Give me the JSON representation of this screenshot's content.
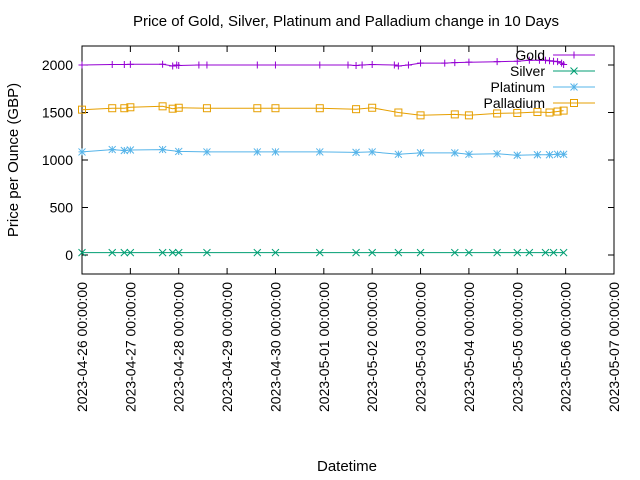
{
  "chart_data": {
    "type": "line",
    "title": "Price of Gold, Silver, Platinum and Palladium change in 10 Days",
    "xlabel": "Datetime",
    "ylabel": "Price per Ounce (GBP)",
    "x_ticks": [
      "2023-04-26 00:00:00",
      "2023-04-27 00:00:00",
      "2023-04-28 00:00:00",
      "2023-04-29 00:00:00",
      "2023-04-30 00:00:00",
      "2023-05-01 00:00:00",
      "2023-05-02 00:00:00",
      "2023-05-03 00:00:00",
      "2023-05-04 00:00:00",
      "2023-05-05 00:00:00",
      "2023-05-06 00:00:00",
      "2023-05-07 00:00:00"
    ],
    "xlim": [
      "2023-04-26 00:00",
      "2023-05-07 00:00"
    ],
    "y_ticks": [
      0,
      500,
      1000,
      1500,
      2000
    ],
    "ylim": [
      -200,
      2200
    ],
    "grid": false,
    "legend_position": "top-right",
    "series": [
      {
        "name": "Gold",
        "color": "#9400d3",
        "marker": "plus",
        "points": [
          [
            "2023-04-26 00:00",
            2000
          ],
          [
            "2023-04-26 15:00",
            2005
          ],
          [
            "2023-04-26 21:00",
            2005
          ],
          [
            "2023-04-27 00:00",
            2007
          ],
          [
            "2023-04-27 16:00",
            2008
          ],
          [
            "2023-04-27 21:00",
            1990
          ],
          [
            "2023-04-27 23:00",
            2000
          ],
          [
            "2023-04-28 00:00",
            1995
          ],
          [
            "2023-04-28 10:00",
            2000
          ],
          [
            "2023-04-28 14:00",
            2000
          ],
          [
            "2023-04-29 15:00",
            2000
          ],
          [
            "2023-04-30 00:00",
            2000
          ],
          [
            "2023-04-30 22:00",
            2000
          ],
          [
            "2023-05-01 12:00",
            2000
          ],
          [
            "2023-05-01 16:00",
            1995
          ],
          [
            "2023-05-01 19:00",
            2000
          ],
          [
            "2023-05-02 00:00",
            2005
          ],
          [
            "2023-05-02 11:00",
            2000
          ],
          [
            "2023-05-02 13:00",
            1990
          ],
          [
            "2023-05-02 18:00",
            2000
          ],
          [
            "2023-05-03 00:00",
            2020
          ],
          [
            "2023-05-03 12:00",
            2020
          ],
          [
            "2023-05-03 17:00",
            2025
          ],
          [
            "2023-05-04 00:00",
            2030
          ],
          [
            "2023-05-04 14:00",
            2035
          ],
          [
            "2023-05-05 00:00",
            2040
          ],
          [
            "2023-05-05 06:00",
            2050
          ],
          [
            "2023-05-05 11:00",
            2050
          ],
          [
            "2023-05-05 14:00",
            2050
          ],
          [
            "2023-05-05 16:00",
            2045
          ],
          [
            "2023-05-05 18:00",
            2040
          ],
          [
            "2023-05-05 20:00",
            2035
          ],
          [
            "2023-05-05 22:00",
            2020
          ],
          [
            "2023-05-05 23:00",
            2005
          ]
        ]
      },
      {
        "name": "Silver",
        "color": "#009e73",
        "marker": "cross",
        "points": [
          [
            "2023-04-26 00:00",
            25
          ],
          [
            "2023-04-26 15:00",
            25
          ],
          [
            "2023-04-26 21:00",
            25
          ],
          [
            "2023-04-27 00:00",
            25
          ],
          [
            "2023-04-27 16:00",
            25
          ],
          [
            "2023-04-27 21:00",
            25
          ],
          [
            "2023-04-28 00:00",
            25
          ],
          [
            "2023-04-28 14:00",
            25
          ],
          [
            "2023-04-29 15:00",
            25
          ],
          [
            "2023-04-30 00:00",
            25
          ],
          [
            "2023-04-30 22:00",
            25
          ],
          [
            "2023-05-01 16:00",
            25
          ],
          [
            "2023-05-02 00:00",
            25
          ],
          [
            "2023-05-02 13:00",
            25
          ],
          [
            "2023-05-03 00:00",
            25
          ],
          [
            "2023-05-03 17:00",
            25
          ],
          [
            "2023-05-04 00:00",
            25
          ],
          [
            "2023-05-04 14:00",
            25
          ],
          [
            "2023-05-05 00:00",
            25
          ],
          [
            "2023-05-05 06:00",
            25
          ],
          [
            "2023-05-05 14:00",
            25
          ],
          [
            "2023-05-05 18:00",
            25
          ],
          [
            "2023-05-05 23:00",
            25
          ]
        ]
      },
      {
        "name": "Platinum",
        "color": "#56b4e9",
        "marker": "star",
        "points": [
          [
            "2023-04-26 00:00",
            1085
          ],
          [
            "2023-04-26 15:00",
            1110
          ],
          [
            "2023-04-26 21:00",
            1100
          ],
          [
            "2023-04-27 00:00",
            1105
          ],
          [
            "2023-04-27 16:00",
            1110
          ],
          [
            "2023-04-28 00:00",
            1090
          ],
          [
            "2023-04-28 14:00",
            1085
          ],
          [
            "2023-04-29 15:00",
            1085
          ],
          [
            "2023-04-30 00:00",
            1085
          ],
          [
            "2023-04-30 22:00",
            1085
          ],
          [
            "2023-05-01 16:00",
            1080
          ],
          [
            "2023-05-02 00:00",
            1085
          ],
          [
            "2023-05-02 13:00",
            1060
          ],
          [
            "2023-05-03 00:00",
            1075
          ],
          [
            "2023-05-03 17:00",
            1075
          ],
          [
            "2023-05-04 00:00",
            1060
          ],
          [
            "2023-05-04 14:00",
            1065
          ],
          [
            "2023-05-05 00:00",
            1050
          ],
          [
            "2023-05-05 10:00",
            1055
          ],
          [
            "2023-05-05 16:00",
            1055
          ],
          [
            "2023-05-05 20:00",
            1060
          ],
          [
            "2023-05-05 23:00",
            1060
          ]
        ]
      },
      {
        "name": "Palladium",
        "color": "#e69f00",
        "marker": "square",
        "points": [
          [
            "2023-04-26 00:00",
            1530
          ],
          [
            "2023-04-26 15:00",
            1545
          ],
          [
            "2023-04-26 21:00",
            1545
          ],
          [
            "2023-04-27 00:00",
            1555
          ],
          [
            "2023-04-27 16:00",
            1565
          ],
          [
            "2023-04-27 21:00",
            1540
          ],
          [
            "2023-04-28 00:00",
            1550
          ],
          [
            "2023-04-28 14:00",
            1545
          ],
          [
            "2023-04-29 15:00",
            1545
          ],
          [
            "2023-04-30 00:00",
            1545
          ],
          [
            "2023-04-30 22:00",
            1545
          ],
          [
            "2023-05-01 16:00",
            1535
          ],
          [
            "2023-05-02 00:00",
            1550
          ],
          [
            "2023-05-02 13:00",
            1500
          ],
          [
            "2023-05-03 00:00",
            1470
          ],
          [
            "2023-05-03 17:00",
            1480
          ],
          [
            "2023-05-04 00:00",
            1470
          ],
          [
            "2023-05-04 14:00",
            1490
          ],
          [
            "2023-05-05 00:00",
            1495
          ],
          [
            "2023-05-05 10:00",
            1505
          ],
          [
            "2023-05-05 16:00",
            1500
          ],
          [
            "2023-05-05 20:00",
            1510
          ],
          [
            "2023-05-05 23:00",
            1520
          ]
        ]
      }
    ]
  }
}
